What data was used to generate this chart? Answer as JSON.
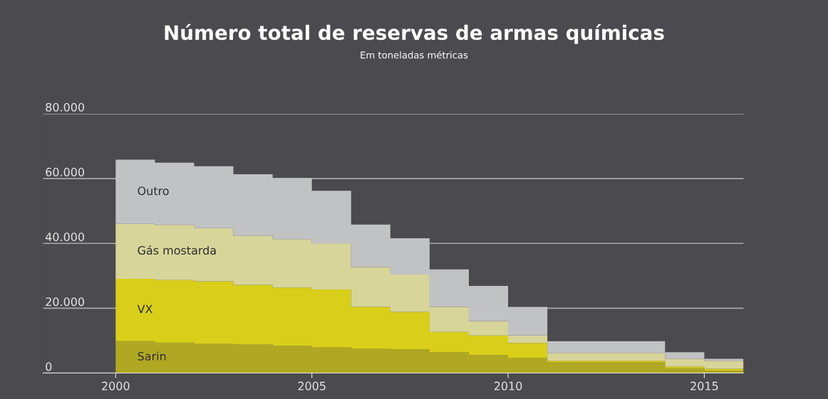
{
  "chart_data": {
    "type": "area",
    "stacked": true,
    "title": "Número total de reservas de armas químicas",
    "subtitle": "Em toneladas métricas",
    "x": [
      2000,
      2001,
      2002,
      2003,
      2004,
      2005,
      2006,
      2007,
      2008,
      2009,
      2010,
      2011,
      2012,
      2013,
      2014,
      2015,
      2016
    ],
    "series": [
      {
        "name": "Sarin",
        "color": "#b0a822",
        "values": [
          9800,
          9400,
          9100,
          8900,
          8400,
          8000,
          7600,
          7300,
          6400,
          5500,
          4700,
          3400,
          3400,
          3400,
          1500,
          700,
          700
        ]
      },
      {
        "name": "VX",
        "color": "#d9cf1a",
        "values": [
          19300,
          19300,
          19200,
          18300,
          18000,
          17800,
          12800,
          11600,
          6300,
          6100,
          4600,
          400,
          400,
          400,
          500,
          600,
          600
        ]
      },
      {
        "name": "Gás mostarda",
        "color": "#d8d59a",
        "values": [
          16900,
          17000,
          16400,
          15200,
          14900,
          14200,
          12300,
          11500,
          7700,
          4400,
          2300,
          2400,
          2400,
          2400,
          2400,
          2500,
          2500
        ]
      },
      {
        "name": "Outro",
        "color": "#c0c2c4",
        "values": [
          19800,
          19200,
          19100,
          18900,
          18900,
          16200,
          13100,
          11200,
          11600,
          10900,
          8800,
          3600,
          3600,
          3600,
          2000,
          600,
          600
        ]
      }
    ],
    "xlim": [
      1998.15,
      2016
    ],
    "xticks": [
      2000,
      2005,
      2010,
      2015
    ],
    "ylim": [
      0,
      80000
    ],
    "yticks": [
      0,
      {
        "value": 20000,
        "label": "20.000"
      },
      {
        "value": 40000,
        "label": "40.000"
      },
      {
        "value": 60000,
        "label": "60.000"
      },
      {
        "value": 80000,
        "label": "80.000"
      }
    ],
    "grid": "y",
    "legend": false
  }
}
